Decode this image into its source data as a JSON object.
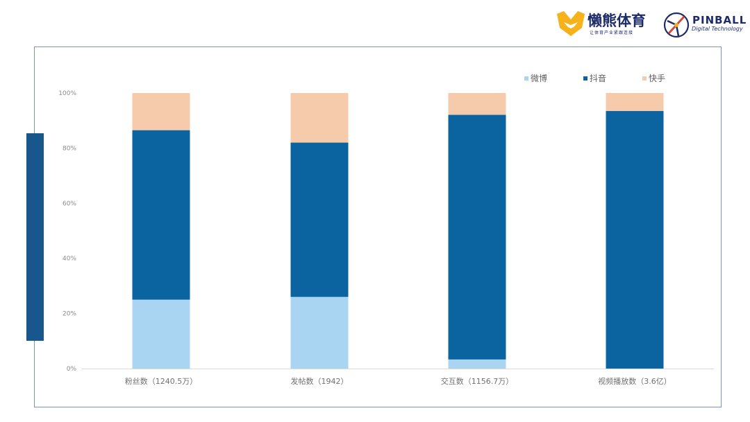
{
  "header": {
    "brand_name": "懒熊体育",
    "brand_slogan": "让体育产业紧跟连接",
    "partner_name": "PINBALL",
    "partner_sub": "Digital Technology"
  },
  "colors": {
    "weibo": "#a9d5f2",
    "douyin": "#0b64a0",
    "kuaishou": "#f6cbac",
    "accent": "#17578b"
  },
  "chart_data": {
    "type": "bar",
    "stacked": true,
    "percent": true,
    "categories": [
      "粉丝数（1240.5万）",
      "发帖数（1942）",
      "交互数（1156.7万）",
      "视频播放数（3.6亿）"
    ],
    "series": [
      {
        "name": "微博",
        "values": [
          25,
          26,
          3.3,
          0
        ]
      },
      {
        "name": "抖音",
        "values": [
          61.5,
          56,
          88.8,
          93.5
        ]
      },
      {
        "name": "快手",
        "values": [
          13.5,
          18,
          7.9,
          6.5
        ]
      }
    ],
    "yticks": [
      "0%",
      "20%",
      "40%",
      "60%",
      "80%",
      "100%"
    ],
    "ylim": [
      0,
      100
    ],
    "legend_position": "top-right",
    "grid": false
  }
}
